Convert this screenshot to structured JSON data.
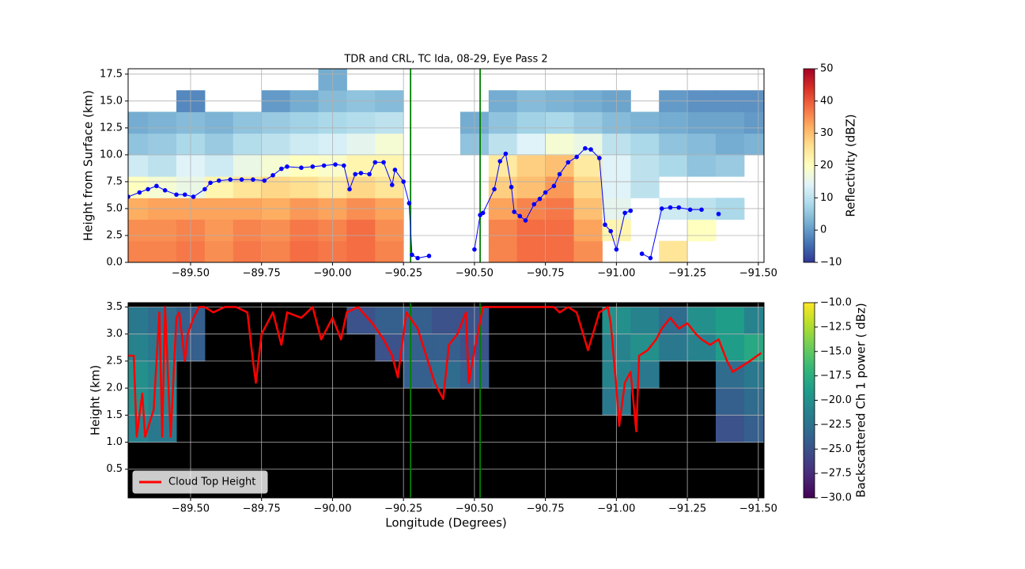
{
  "chart_data": [
    {
      "type": "heatmap",
      "title": "TDR and CRL, TC Ida, 08-29, Eye Pass 2",
      "ylabel": "Height from Surface (km)",
      "xlim": [
        -89.28,
        -91.52
      ],
      "xticks": [
        {
          "value": -89.5,
          "label": "−89.50"
        },
        {
          "value": -89.75,
          "label": "−89.75"
        },
        {
          "value": -90,
          "label": "−90.00"
        },
        {
          "value": -90.25,
          "label": "−90.25"
        },
        {
          "value": -90.5,
          "label": "−90.50"
        },
        {
          "value": -90.75,
          "label": "−90.75"
        },
        {
          "value": -91,
          "label": "−91.00"
        },
        {
          "value": -91.25,
          "label": "−91.25"
        },
        {
          "value": -91.5,
          "label": "−91.50"
        }
      ],
      "ylim": [
        0,
        18
      ],
      "yticks": [
        {
          "value": 0,
          "label": "0.0"
        },
        2.5,
        {
          "value": 5,
          "label": "5.0"
        },
        7.5,
        {
          "value": 10,
          "label": "10.0"
        },
        12.5,
        {
          "value": 15,
          "label": "15.0"
        },
        17.5
      ],
      "grid": true,
      "vlines": {
        "x": [
          -90.275,
          -90.52
        ],
        "color": "#008000"
      },
      "heatmap": {
        "colormap": "RdYlBu_r",
        "clim": [
          -10,
          50
        ],
        "cticks": [
          {
            "value": -10,
            "label": "−10"
          },
          0,
          10,
          20,
          30,
          40,
          50
        ],
        "colorbar_label": "Reflectivity (dBZ)",
        "x": [
          -89.3,
          -89.4,
          -89.5,
          -89.6,
          -89.7,
          -89.8,
          -89.9,
          -90.0,
          -90.1,
          -90.2,
          -90.3,
          -90.4,
          -90.5,
          -90.6,
          -90.7,
          -90.8,
          -90.9,
          -91.0,
          -91.1,
          -91.2,
          -91.3,
          -91.4,
          -91.5
        ],
        "y": [
          1,
          3,
          5,
          7,
          9,
          11,
          13,
          15,
          17
        ],
        "z": [
          [
            36,
            36,
            37,
            35,
            37,
            36,
            38,
            37,
            38,
            36,
            null,
            null,
            null,
            36,
            38,
            38,
            35,
            null,
            null,
            25,
            null,
            null,
            null
          ],
          [
            35,
            35,
            36,
            34,
            36,
            35,
            37,
            36,
            38,
            35,
            null,
            null,
            null,
            36,
            38,
            38,
            33,
            22,
            null,
            null,
            20,
            null,
            null
          ],
          [
            32,
            33,
            33,
            33,
            33,
            32,
            34,
            33,
            35,
            33,
            null,
            null,
            null,
            33,
            36,
            37,
            30,
            15,
            null,
            12,
            10,
            8,
            null
          ],
          [
            20,
            18,
            16,
            22,
            25,
            27,
            26,
            24,
            27,
            25,
            null,
            null,
            null,
            28,
            30,
            34,
            27,
            14,
            10,
            null,
            null,
            null,
            null
          ],
          [
            12,
            10,
            14,
            12,
            16,
            18,
            20,
            19,
            22,
            22,
            null,
            null,
            null,
            24,
            28,
            30,
            24,
            14,
            10,
            8,
            5,
            6,
            null
          ],
          [
            5,
            6,
            8,
            6,
            9,
            10,
            12,
            13,
            15,
            18,
            null,
            null,
            5,
            10,
            14,
            18,
            16,
            10,
            8,
            5,
            4,
            2,
            3
          ],
          [
            2,
            3,
            4,
            3,
            5,
            6,
            7,
            8,
            9,
            10,
            null,
            null,
            2,
            5,
            7,
            8,
            6,
            4,
            3,
            2,
            1,
            1,
            0
          ],
          [
            null,
            null,
            -2,
            null,
            null,
            0,
            2,
            4,
            5,
            4,
            null,
            null,
            null,
            2,
            4,
            3,
            2,
            1,
            null,
            0,
            -1,
            -1,
            -1
          ],
          [
            null,
            null,
            null,
            null,
            null,
            null,
            null,
            2,
            null,
            null,
            null,
            null,
            null,
            null,
            null,
            null,
            null,
            null,
            null,
            null,
            null,
            null,
            null
          ]
        ]
      },
      "series": [
        {
          "color": "#0000ff",
          "marker": true,
          "x": [
            -89.28,
            -89.32,
            -89.35,
            -89.38,
            -89.41,
            -89.45,
            -89.48,
            -89.51,
            -89.55,
            -89.57,
            -89.6,
            -89.64,
            -89.68,
            -89.72,
            -89.76,
            -89.79,
            -89.82,
            -89.84,
            -89.89,
            -89.93,
            -89.97,
            -90.01,
            -90.04,
            -90.06,
            -90.08,
            -90.1,
            -90.13,
            -90.15,
            -90.18,
            -90.21,
            -90.22,
            -90.25,
            -90.27,
            -90.28,
            -90.3,
            -90.34,
            -90.42,
            -90.5,
            -90.52,
            -90.53,
            -90.57,
            -90.59,
            -90.61,
            -90.63,
            -90.64,
            -90.66,
            -90.68,
            -90.71,
            -90.73,
            -90.75,
            -90.78,
            -90.8,
            -90.83,
            -90.86,
            -90.89,
            -90.91,
            -90.94,
            -90.96,
            -90.98,
            -91.0,
            -91.03,
            -91.05,
            -91.07,
            -91.09,
            -91.12,
            -91.16,
            -91.19,
            -91.22,
            -91.26,
            -91.3,
            -91.33,
            -91.36
          ],
          "values": [
            6.1,
            6.5,
            6.8,
            7.1,
            6.7,
            6.3,
            6.3,
            6.1,
            6.8,
            7.4,
            7.6,
            7.7,
            7.7,
            7.7,
            7.6,
            8.1,
            8.7,
            8.9,
            8.8,
            8.9,
            9.0,
            9.1,
            9.0,
            6.8,
            8.2,
            8.3,
            8.2,
            9.3,
            9.3,
            7.2,
            8.6,
            7.5,
            5.5,
            0.7,
            0.4,
            0.6,
            null,
            1.2,
            4.4,
            4.6,
            6.8,
            9.4,
            10.1,
            7.0,
            4.7,
            4.3,
            3.9,
            5.4,
            5.9,
            6.5,
            7.1,
            8.2,
            9.3,
            9.8,
            10.6,
            10.5,
            9.7,
            3.5,
            2.9,
            1.2,
            4.6,
            4.8,
            null,
            0.8,
            0.4,
            5.0,
            5.1,
            5.1,
            4.9,
            4.9,
            null,
            4.5
          ]
        }
      ]
    },
    {
      "type": "heatmap",
      "xlabel": "Longitude (Degrees)",
      "ylabel": "Height (km)",
      "facecolor": "#000000",
      "xlim": [
        -89.28,
        -91.52
      ],
      "xticks": [
        {
          "value": -89.5,
          "label": "−89.50"
        },
        {
          "value": -89.75,
          "label": "−89.75"
        },
        {
          "value": -90,
          "label": "−90.00"
        },
        {
          "value": -90.25,
          "label": "−90.25"
        },
        {
          "value": -90.5,
          "label": "−90.50"
        },
        {
          "value": -90.75,
          "label": "−90.75"
        },
        {
          "value": -91,
          "label": "−91.00"
        },
        {
          "value": -91.25,
          "label": "−91.25"
        },
        {
          "value": -91.5,
          "label": "−91.50"
        }
      ],
      "ylim": [
        -0.03,
        3.58
      ],
      "yticks": [
        0.5,
        {
          "value": 1,
          "label": "1.0"
        },
        1.5,
        {
          "value": 2,
          "label": "2.0"
        },
        2.5,
        {
          "value": 3,
          "label": "3.0"
        },
        3.5
      ],
      "grid": true,
      "legend": "lower left",
      "vlines": {
        "x": [
          -90.275,
          -90.52
        ],
        "color": "#008000"
      },
      "heatmap": {
        "colormap": "viridis",
        "clim": [
          -30,
          -10
        ],
        "cticks": [
          {
            "value": -30,
            "label": "−30.0"
          },
          {
            "value": -27.5,
            "label": "−27.5"
          },
          {
            "value": -25,
            "label": "−25.0"
          },
          {
            "value": -22.5,
            "label": "−22.5"
          },
          {
            "value": -20,
            "label": "−20.0"
          },
          {
            "value": -17.5,
            "label": "−17.5"
          },
          {
            "value": -15,
            "label": "−15.0"
          },
          {
            "value": -12.5,
            "label": "−12.5"
          },
          {
            "value": -10,
            "label": "−10.0"
          }
        ],
        "colorbar_label": "Backscattered Ch 1 power ( dBz)",
        "x": [
          -89.3,
          -89.4,
          -89.5,
          -89.6,
          -89.7,
          -89.8,
          -89.9,
          -90.0,
          -90.1,
          -90.2,
          -90.3,
          -90.4,
          -90.5,
          -90.6,
          -90.7,
          -90.8,
          -90.9,
          -91.0,
          -91.1,
          -91.2,
          -91.3,
          -91.4,
          -91.5
        ],
        "y": [
          0.25,
          0.75,
          1.25,
          1.75,
          2.25,
          2.75,
          3.25
        ],
        "z": [
          [
            null,
            null,
            null,
            null,
            null,
            null,
            null,
            null,
            null,
            null,
            null,
            null,
            null,
            null,
            null,
            null,
            null,
            null,
            null,
            null,
            null,
            null,
            null
          ],
          [
            null,
            null,
            null,
            null,
            null,
            null,
            null,
            null,
            null,
            null,
            null,
            null,
            null,
            null,
            null,
            null,
            null,
            null,
            null,
            null,
            null,
            null,
            null
          ],
          [
            -21,
            -22,
            null,
            null,
            null,
            null,
            null,
            null,
            null,
            null,
            null,
            null,
            null,
            null,
            null,
            null,
            null,
            null,
            null,
            null,
            null,
            -25,
            -24
          ],
          [
            -20,
            -21,
            null,
            null,
            null,
            null,
            null,
            null,
            null,
            null,
            null,
            null,
            null,
            null,
            null,
            null,
            null,
            -22,
            null,
            null,
            null,
            -24,
            -23
          ],
          [
            -20,
            -21,
            null,
            null,
            null,
            null,
            null,
            null,
            null,
            null,
            -24,
            -23,
            -24,
            null,
            null,
            null,
            null,
            -21,
            -22,
            null,
            null,
            -23,
            -22
          ],
          [
            -21,
            -22,
            -24,
            null,
            null,
            null,
            null,
            null,
            null,
            -25,
            -24,
            -24,
            -25,
            null,
            null,
            null,
            null,
            -21,
            -20,
            -22,
            -21,
            -19,
            -18
          ],
          [
            -22,
            -23,
            -24,
            null,
            null,
            null,
            null,
            null,
            -25,
            -24,
            -24,
            -25,
            -25,
            null,
            null,
            null,
            null,
            -20,
            -21,
            -23,
            -20,
            -19,
            -21
          ]
        ]
      },
      "series": [
        {
          "name": "Cloud Top Height",
          "color": "#ff0000",
          "marker": false,
          "x": [
            -89.28,
            -89.3,
            -89.31,
            -89.33,
            -89.34,
            -89.37,
            -89.39,
            -89.4,
            -89.41,
            -89.43,
            -89.45,
            -89.46,
            -89.48,
            -89.49,
            -89.51,
            -89.53,
            -89.55,
            -89.58,
            -89.62,
            -89.66,
            -89.7,
            -89.72,
            -89.73,
            -89.75,
            -89.78,
            -89.79,
            -89.82,
            -89.84,
            -89.89,
            -89.93,
            -89.96,
            -90.0,
            -90.03,
            -90.05,
            -90.09,
            -90.14,
            -90.18,
            -90.21,
            -90.23,
            -90.26,
            -90.3,
            -90.33,
            -90.36,
            -90.39,
            -90.41,
            -90.44,
            -90.47,
            -90.48,
            -90.5,
            -90.53,
            -90.57,
            -90.61,
            -90.65,
            -90.69,
            -90.73,
            -90.78,
            -90.8,
            -90.83,
            -90.86,
            -90.9,
            -90.94,
            -90.97,
            -90.98,
            -91.0,
            -91.01,
            -91.03,
            -91.05,
            -91.07,
            -91.08,
            -91.11,
            -91.14,
            -91.16,
            -91.19,
            -91.22,
            -91.25,
            -91.28,
            -91.3,
            -91.33,
            -91.36,
            -91.39,
            -91.41,
            -91.44,
            -91.47,
            -91.51
          ],
          "values": [
            2.6,
            2.6,
            1.1,
            1.9,
            1.1,
            1.6,
            3.4,
            1.1,
            3.5,
            1.1,
            3.3,
            3.4,
            2.5,
            3.0,
            3.3,
            3.5,
            3.5,
            3.4,
            3.5,
            3.5,
            3.4,
            2.5,
            2.1,
            3.0,
            3.3,
            3.4,
            2.8,
            3.4,
            3.3,
            3.5,
            2.9,
            3.3,
            2.9,
            3.4,
            3.5,
            3.2,
            2.9,
            2.6,
            2.2,
            3.4,
            3.1,
            2.6,
            2.1,
            1.8,
            2.8,
            3.0,
            3.4,
            2.1,
            2.7,
            3.5,
            3.5,
            3.5,
            3.5,
            3.5,
            3.5,
            3.5,
            3.4,
            3.5,
            3.4,
            2.7,
            3.4,
            3.5,
            3.2,
            2.0,
            1.3,
            2.1,
            2.3,
            1.2,
            2.6,
            2.7,
            2.9,
            3.1,
            3.3,
            3.1,
            3.2,
            3.0,
            2.9,
            2.8,
            2.9,
            2.5,
            2.3,
            2.4,
            2.5,
            2.65
          ]
        }
      ]
    }
  ]
}
